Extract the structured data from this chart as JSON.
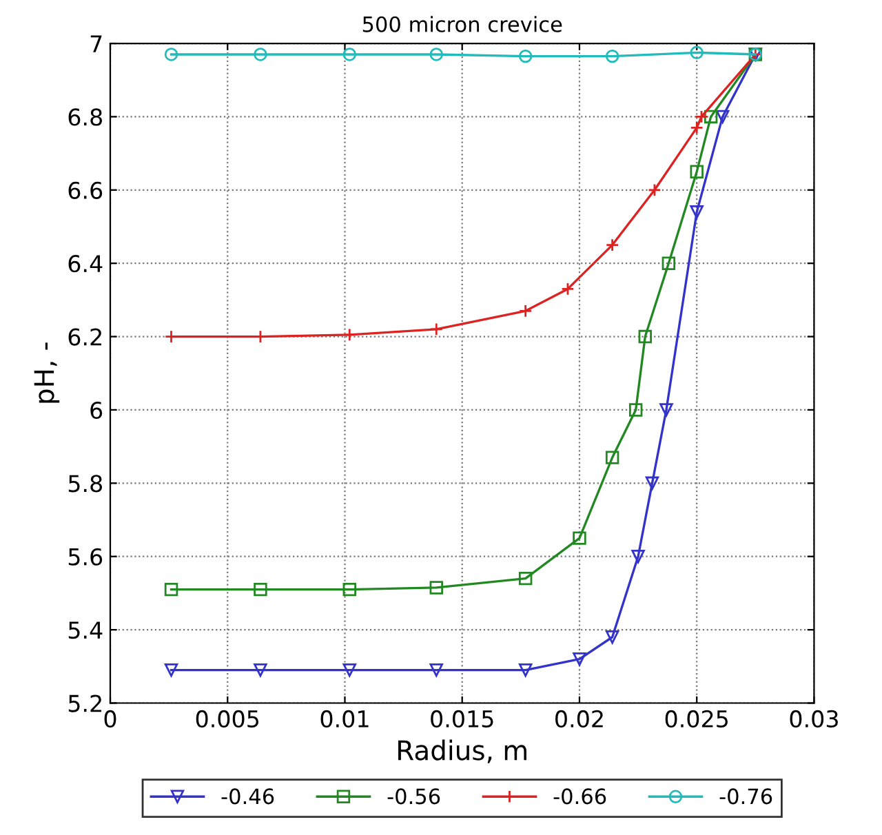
{
  "chart_data": {
    "type": "line",
    "title": "500 micron crevice",
    "xlabel": "Radius, m",
    "ylabel": "pH, -",
    "xlim": [
      0,
      0.03
    ],
    "ylim": [
      5.2,
      7
    ],
    "xticks": [
      0,
      0.005,
      0.01,
      0.015,
      0.02,
      0.025,
      0.03
    ],
    "yticks": [
      5.2,
      5.4,
      5.6,
      5.8,
      6,
      6.2,
      6.4,
      6.6,
      6.8,
      7
    ],
    "grid": true,
    "legend": "bottom",
    "line_style": "solid",
    "series": [
      {
        "name": "-0.46",
        "color": "#3333cc",
        "marker": "triangle",
        "x": [
          0.0026,
          0.0064,
          0.0102,
          0.0139,
          0.0177,
          0.02,
          0.0214,
          0.0225,
          0.0231,
          0.0237,
          0.025,
          0.0261,
          0.0275
        ],
        "values": [
          5.29,
          5.29,
          5.29,
          5.29,
          5.29,
          5.32,
          5.38,
          5.6,
          5.8,
          6.0,
          6.54,
          6.8,
          6.97
        ]
      },
      {
        "name": "-0.56",
        "color": "#228822",
        "marker": "square",
        "x": [
          0.0026,
          0.0064,
          0.0102,
          0.0139,
          0.0177,
          0.02,
          0.0214,
          0.0224,
          0.0228,
          0.0238,
          0.025,
          0.0256,
          0.0275
        ],
        "values": [
          5.51,
          5.51,
          5.51,
          5.515,
          5.54,
          5.65,
          5.87,
          6.0,
          6.2,
          6.4,
          6.65,
          6.8,
          6.97
        ]
      },
      {
        "name": "-0.66",
        "color": "#dd2222",
        "marker": "cross",
        "x": [
          0.0026,
          0.0064,
          0.0102,
          0.0139,
          0.0177,
          0.0195,
          0.0214,
          0.0232,
          0.025,
          0.0252,
          0.0275
        ],
        "values": [
          6.2,
          6.2,
          6.205,
          6.22,
          6.27,
          6.33,
          6.45,
          6.6,
          6.77,
          6.8,
          6.97
        ]
      },
      {
        "name": "-0.76",
        "color": "#22bbbb",
        "marker": "circle",
        "x": [
          0.0026,
          0.0064,
          0.0102,
          0.0139,
          0.0177,
          0.0214,
          0.025,
          0.0275
        ],
        "values": [
          6.97,
          6.97,
          6.97,
          6.97,
          6.965,
          6.965,
          6.975,
          6.97
        ]
      }
    ]
  }
}
